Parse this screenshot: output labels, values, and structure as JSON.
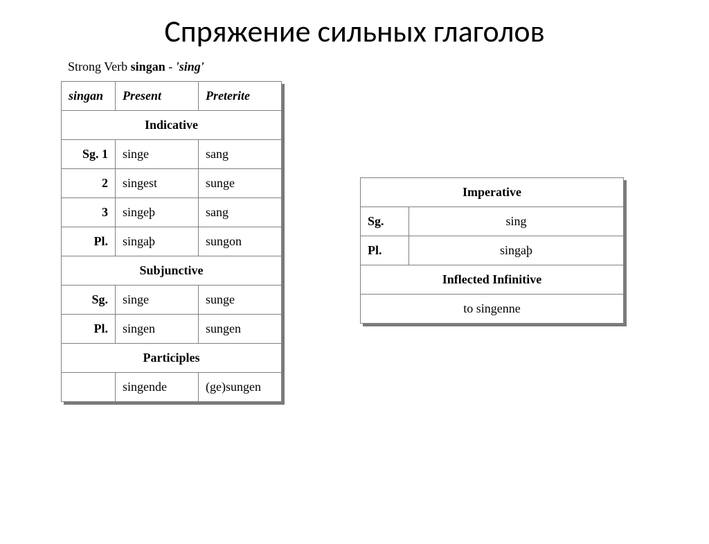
{
  "page": {
    "title": "Спряжение сильных глаголов"
  },
  "caption": {
    "prefix": "Strong Verb ",
    "verb": "singan",
    "sep": " - ",
    "gloss": "'sing'"
  },
  "left_table": {
    "head": {
      "c1": "singan",
      "c2": "Present",
      "c3": "Preterite"
    },
    "sections": {
      "indicative": "Indicative",
      "subjunctive": "Subjunctive",
      "participles": "Participles"
    },
    "labels": {
      "sg1": "Sg. 1",
      "sg2": "2",
      "sg3": "3",
      "pl": "Pl.",
      "sg": "Sg."
    },
    "indicative": {
      "sg1": {
        "present": "singe",
        "preterite": "sang"
      },
      "sg2": {
        "present": "singest",
        "preterite": "sunge"
      },
      "sg3": {
        "present": "singeþ",
        "preterite": "sang"
      },
      "pl": {
        "present": "singaþ",
        "preterite": "sungon"
      }
    },
    "subjunctive": {
      "sg": {
        "present": "singe",
        "preterite": "sunge"
      },
      "pl": {
        "present": "singen",
        "preterite": "sungen"
      }
    },
    "participles": {
      "present": "singende",
      "past": "(ge)sungen"
    }
  },
  "right_table": {
    "sections": {
      "imperative": "Imperative",
      "inflected_infinitive": "Inflected Infinitive"
    },
    "labels": {
      "sg": "Sg.",
      "pl": "Pl."
    },
    "imperative": {
      "sg": "sing",
      "pl": "singaþ"
    },
    "infinitive": "to singenne"
  },
  "style": {
    "page_bg": "#ffffff",
    "text_color": "#000000",
    "border_color": "#808080",
    "shadow_color": "#7a7a7a",
    "title_font": "Calibri",
    "title_size_pt": 33,
    "body_font": "Times New Roman",
    "body_size_pt": 14
  }
}
